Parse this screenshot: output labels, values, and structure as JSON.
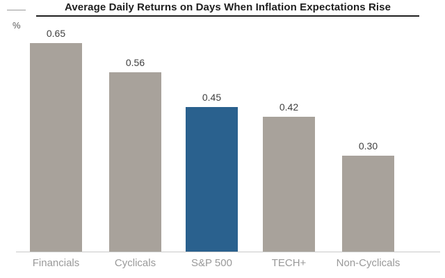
{
  "header": {
    "title": "Average Daily Returns on Days When Inflation Expectations Rise",
    "unit_label": "%"
  },
  "chart_data": {
    "type": "bar",
    "title": "Average Daily Returns on Days When Inflation Expectations Rise",
    "unit": "%",
    "categories": [
      "Financials",
      "Cyclicals",
      "S&P 500",
      "TECH+",
      "Non-Cyclicals"
    ],
    "values": [
      0.65,
      0.56,
      0.45,
      0.42,
      0.3
    ],
    "value_labels": [
      "0.65",
      "0.56",
      "0.45",
      "0.42",
      "0.30"
    ],
    "highlight_index": 2,
    "highlight_category": "S&P 500",
    "ylabel": "%",
    "ylim": [
      0,
      0.7
    ],
    "grid": false,
    "legend": "none",
    "colors": {
      "bar": "#A8A29B",
      "highlight": "#2A618E",
      "axis_line": "#C9C9C9",
      "title_text": "#1F1F1F",
      "value_label": "#3F3F3F",
      "category_label": "#999999"
    }
  }
}
